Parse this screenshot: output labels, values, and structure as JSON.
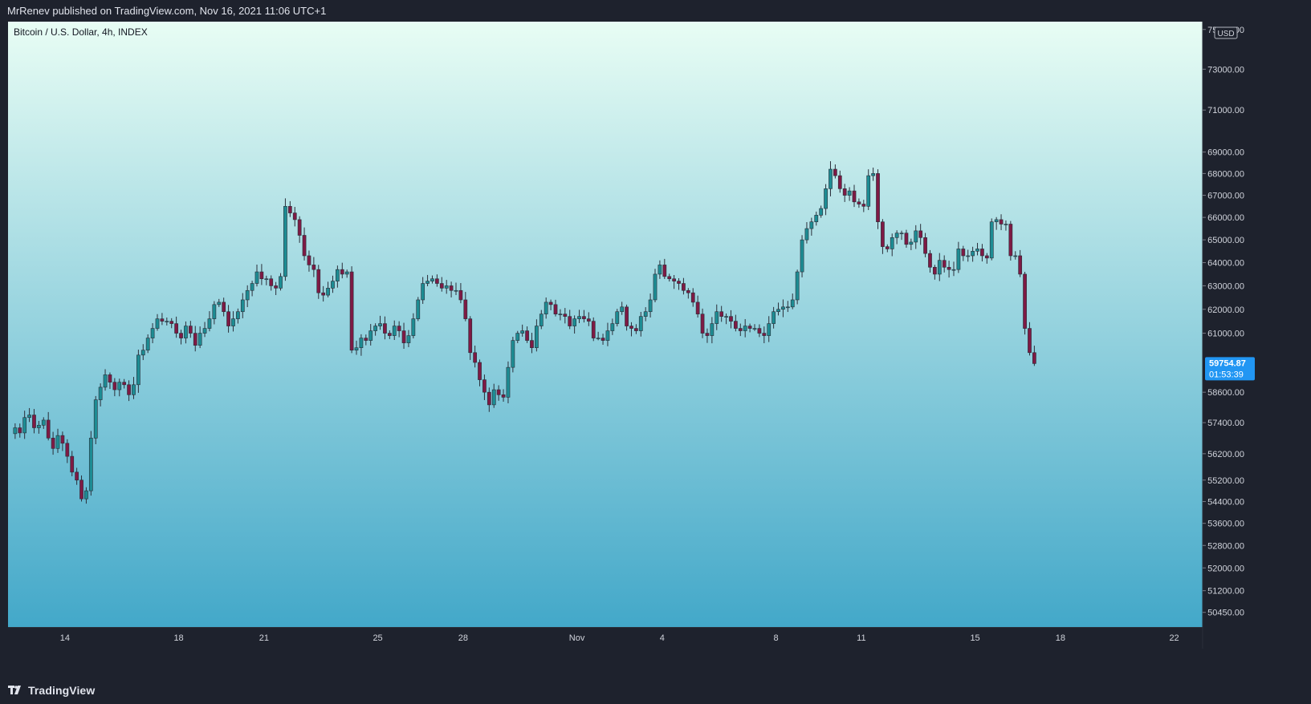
{
  "header": {
    "published": "MrRenev published on TradingView.com, Nov 16, 2021 11:06 UTC+1"
  },
  "footer": {
    "brand": "TradingView"
  },
  "colors": {
    "page_bg": "#1e222d",
    "gradient_top": "#e8fdf4",
    "gradient_bottom": "#43a8c9",
    "candle_up": "#1d8c93",
    "candle_down": "#7e1a44",
    "wick": "#2a2e39",
    "last_price_badge": "#2196f3"
  },
  "chart_data": {
    "type": "candlestick",
    "title": "Bitcoin / U.S. Dollar, 4h, INDEX",
    "currency_label": "USD",
    "y_scale": "log",
    "ylim": [
      49950,
      75400
    ],
    "xlim": [
      "2021-10-12",
      "2021-11-23"
    ],
    "last_price": "59754.87",
    "countdown": "01:53:39",
    "ytick_labels": [
      "75000.00",
      "73000.00",
      "71000.00",
      "69000.00",
      "68000.00",
      "67000.00",
      "66000.00",
      "65000.00",
      "64000.00",
      "63000.00",
      "62000.00",
      "61000.00",
      "58600.00",
      "57400.00",
      "56200.00",
      "55200.00",
      "54400.00",
      "53600.00",
      "52800.00",
      "52000.00",
      "51200.00",
      "50450.00"
    ],
    "ytick_values": [
      75000,
      73000,
      71000,
      69000,
      68000,
      67000,
      66000,
      65000,
      64000,
      63000,
      62000,
      61000,
      58600,
      57400,
      56200,
      55200,
      54400,
      53600,
      52800,
      52000,
      51200,
      50450
    ],
    "xtick_labels": [
      "14",
      "18",
      "21",
      "25",
      "28",
      "Nov",
      "4",
      "8",
      "11",
      "15",
      "18",
      "22"
    ],
    "xtick_dates": [
      "2021-10-14",
      "2021-10-18",
      "2021-10-21",
      "2021-10-25",
      "2021-10-28",
      "2021-11-01",
      "2021-11-04",
      "2021-11-08",
      "2021-11-11",
      "2021-11-15",
      "2021-11-18",
      "2021-11-22"
    ],
    "series_start": "2021-10-12 04:00",
    "interval_hours": 4,
    "close": [
      57200,
      57000,
      57600,
      57700,
      57200,
      57300,
      57500,
      56800,
      56400,
      56900,
      56600,
      56100,
      55500,
      55200,
      54500,
      54800,
      56800,
      58300,
      58800,
      59300,
      59000,
      58700,
      59000,
      58900,
      58500,
      58900,
      60100,
      60300,
      60800,
      61200,
      61600,
      61500,
      61500,
      61400,
      61000,
      60800,
      61300,
      61000,
      60500,
      61000,
      61200,
      61600,
      62200,
      62300,
      61900,
      61300,
      61600,
      61900,
      62400,
      62800,
      63100,
      63600,
      63300,
      63300,
      63000,
      62900,
      63400,
      66500,
      66200,
      65900,
      65200,
      64300,
      63900,
      63700,
      62700,
      62600,
      62900,
      63200,
      63700,
      63500,
      63600,
      60300,
      60400,
      60800,
      60700,
      61100,
      61300,
      61400,
      61000,
      60900,
      61300,
      61100,
      60600,
      60900,
      61600,
      62400,
      63100,
      63200,
      63300,
      63100,
      62900,
      63000,
      62800,
      62800,
      62400,
      61600,
      60200,
      59800,
      59100,
      58600,
      58100,
      58700,
      58500,
      58400,
      59600,
      60700,
      61000,
      61100,
      60700,
      60400,
      61300,
      61800,
      62300,
      62200,
      61800,
      61800,
      61700,
      61300,
      61600,
      61700,
      61600,
      61500,
      60800,
      60800,
      60700,
      61100,
      61400,
      61900,
      62100,
      61300,
      61200,
      61100,
      61700,
      61900,
      62400,
      63500,
      63900,
      63400,
      63300,
      63200,
      63100,
      62800,
      62700,
      62300,
      61800,
      61000,
      60900,
      61400,
      61900,
      61700,
      61700,
      61500,
      61200,
      61100,
      61300,
      61200,
      61200,
      61000,
      60900,
      61400,
      61900,
      62000,
      62100,
      62100,
      62400,
      63600,
      65000,
      65500,
      65800,
      66100,
      66400,
      67300,
      68200,
      67900,
      67300,
      67000,
      67200,
      66700,
      66600,
      66500,
      67900,
      68000,
      65800,
      64700,
      64600,
      65100,
      65300,
      65300,
      64800,
      64900,
      65400,
      65100,
      64400,
      63800,
      63500,
      64100,
      63800,
      63700,
      63700,
      64600,
      64300,
      64300,
      64500,
      64600,
      64300,
      64200,
      65800,
      65900,
      65700,
      65700,
      64300,
      64300,
      63500,
      61200,
      60200,
      59754
    ]
  }
}
